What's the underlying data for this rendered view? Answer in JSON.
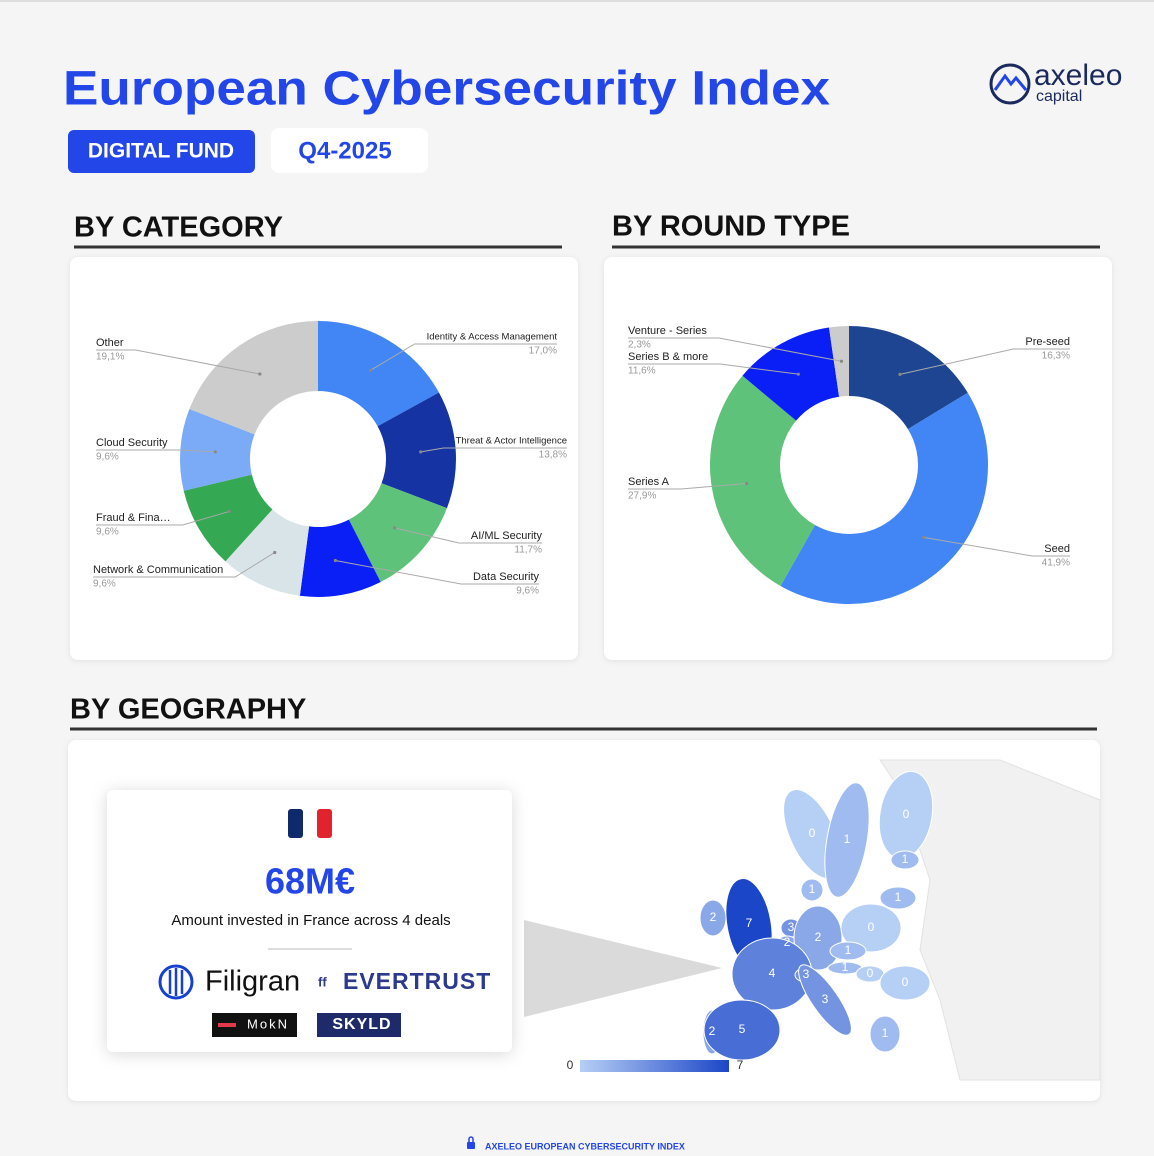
{
  "header": {
    "title": "European Cybersecurity Index",
    "badges": [
      "DIGITAL FUND",
      "Q4-2025"
    ],
    "logo": {
      "name": "axeleo",
      "sub": "capital"
    }
  },
  "chart_data": [
    {
      "type": "pie",
      "title": "BY CATEGORY",
      "donut": true,
      "categories": [
        "Identity & Access Management",
        "Threat & Actor Intelligence",
        "AI/ML Security",
        "Data Security",
        "Network & Communication",
        "Fraud & Fina…",
        "Cloud Security",
        "Other"
      ],
      "values": [
        17.0,
        13.8,
        11.7,
        9.6,
        9.6,
        9.6,
        9.6,
        19.1
      ],
      "value_labels": [
        "17,0%",
        "13,8%",
        "11,7%",
        "9,6%",
        "9,6%",
        "9,6%",
        "9,6%",
        "19,1%"
      ],
      "colors": [
        "#4285f4",
        "#1633a3",
        "#5ec27a",
        "#0a1ff5",
        "#d8e4e8",
        "#34a853",
        "#7baaf7",
        "#cccccc"
      ]
    },
    {
      "type": "pie",
      "title": "BY ROUND TYPE",
      "donut": true,
      "categories": [
        "Pre-seed",
        "Seed",
        "Series A",
        "Series B & more",
        "Venture - Series"
      ],
      "values": [
        16.3,
        41.9,
        27.9,
        11.6,
        2.3
      ],
      "value_labels": [
        "16,3%",
        "41,9%",
        "27,9%",
        "11,6%",
        "2,3%"
      ],
      "colors": [
        "#1d4591",
        "#4285f4",
        "#5ec27a",
        "#0a1ff5",
        "#cccccc"
      ]
    }
  ],
  "geography": {
    "title": "BY GEOGRAPHY",
    "card": {
      "amount": "68M€",
      "caption": "Amount invested in France across 4 deals",
      "companies": [
        "Filigran",
        "EVERTRUST",
        "MokN",
        "SKYLD"
      ]
    },
    "map": {
      "values": [
        0,
        1,
        0,
        1,
        2,
        7,
        1,
        1,
        3,
        2,
        2,
        0,
        4,
        3,
        1,
        1,
        0,
        0,
        3,
        2,
        5,
        1
      ],
      "scale": [
        0,
        7
      ],
      "colors": [
        "#b6cff5",
        "#1c46c8"
      ]
    }
  },
  "footer": {
    "text": "AXELEO EUROPEAN CYBERSECURITY INDEX"
  }
}
